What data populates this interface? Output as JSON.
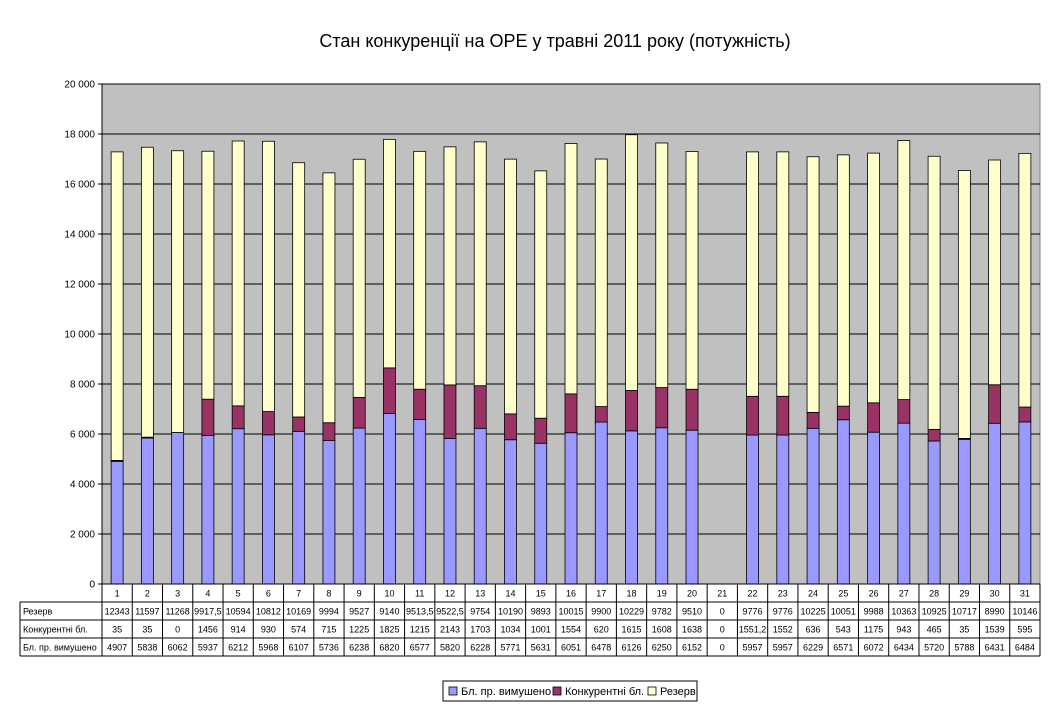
{
  "chart_data": {
    "type": "bar",
    "stacked": true,
    "title": "Стан конкуренції на ОРЕ  у травні 2011 року (потужність)",
    "xlabel": "",
    "ylabel": "",
    "ylim": [
      0,
      20000
    ],
    "yticks": [
      "0",
      "2 000",
      "4 000",
      "6 000",
      "8 000",
      "10 000",
      "12 000",
      "14 000",
      "16 000",
      "18 000",
      "20 000"
    ],
    "grid": true,
    "legend_position": "bottom",
    "categories": [
      "1",
      "2",
      "3",
      "4",
      "5",
      "6",
      "7",
      "8",
      "9",
      "10",
      "11",
      "12",
      "13",
      "14",
      "15",
      "16",
      "17",
      "18",
      "19",
      "20",
      "21",
      "22",
      "23",
      "24",
      "25",
      "26",
      "27",
      "28",
      "29",
      "30",
      "31"
    ],
    "series": [
      {
        "name": "Бл. пр. вимушено",
        "color": "#9999FF",
        "values": [
          4907,
          5838,
          6062,
          5937,
          6212,
          5968,
          6107,
          5736,
          6238,
          6820,
          6577,
          5820,
          6228,
          5771,
          5631,
          6051,
          6478,
          6126,
          6250,
          6152,
          0,
          5957,
          5957,
          6229,
          6571,
          6072,
          6434,
          5720,
          5788,
          6431,
          6484
        ],
        "labels": [
          "4907",
          "5838",
          "6062",
          "5937",
          "6212",
          "5968",
          "6107",
          "5736",
          "6238",
          "6820",
          "6577",
          "5820",
          "6228",
          "5771",
          "5631",
          "6051",
          "6478",
          "6126",
          "6250",
          "6152",
          "0",
          "5957",
          "5957",
          "6229",
          "6571",
          "6072",
          "6434",
          "5720",
          "5788",
          "6431",
          "6484"
        ]
      },
      {
        "name": "Конкурентні бл.",
        "color": "#993366",
        "values": [
          35,
          35,
          0,
          1456,
          914,
          930,
          574,
          715,
          1225,
          1825,
          1215,
          2143,
          1703,
          1034,
          1001,
          1554,
          620,
          1615,
          1608,
          1638,
          0,
          1551.2,
          1552,
          636,
          543,
          1175,
          943,
          465,
          35,
          1539,
          595
        ],
        "labels": [
          "35",
          "35",
          "0",
          "1456",
          "914",
          "930",
          "574",
          "715",
          "1225",
          "1825",
          "1215",
          "2143",
          "1703",
          "1034",
          "1001",
          "1554",
          "620",
          "1615",
          "1608",
          "1638",
          "0",
          "1551,2",
          "1552",
          "636",
          "543",
          "1175",
          "943",
          "465",
          "35",
          "1539",
          "595"
        ]
      },
      {
        "name": "Резерв",
        "color": "#FFFFCC",
        "values": [
          12343,
          11597,
          11268,
          9917.5,
          10594,
          10812,
          10169,
          9994,
          9527,
          9140,
          9513.5,
          9522.5,
          9754,
          10190,
          9893,
          10015,
          9900,
          10229,
          9782,
          9510,
          0,
          9776,
          9776,
          10225,
          10051,
          9988,
          10363,
          10925,
          10717,
          8990,
          10146
        ],
        "labels": [
          "12343",
          "11597",
          "11268",
          "9917,5",
          "10594",
          "10812",
          "10169",
          "9994",
          "9527",
          "9140",
          "9513,5",
          "9522,5",
          "9754",
          "10190",
          "9893",
          "10015",
          "9900",
          "10229",
          "9782",
          "9510",
          "0",
          "9776",
          "9776",
          "10225",
          "10051",
          "9988",
          "10363",
          "10925",
          "10717",
          "8990",
          "10146"
        ]
      }
    ],
    "table_row_order": [
      "Резерв",
      "Конкурентні бл.",
      "Бл. пр. вимушено"
    ],
    "colors": {
      "plot_background": "#C0C0C0",
      "grid": "#000000"
    }
  }
}
